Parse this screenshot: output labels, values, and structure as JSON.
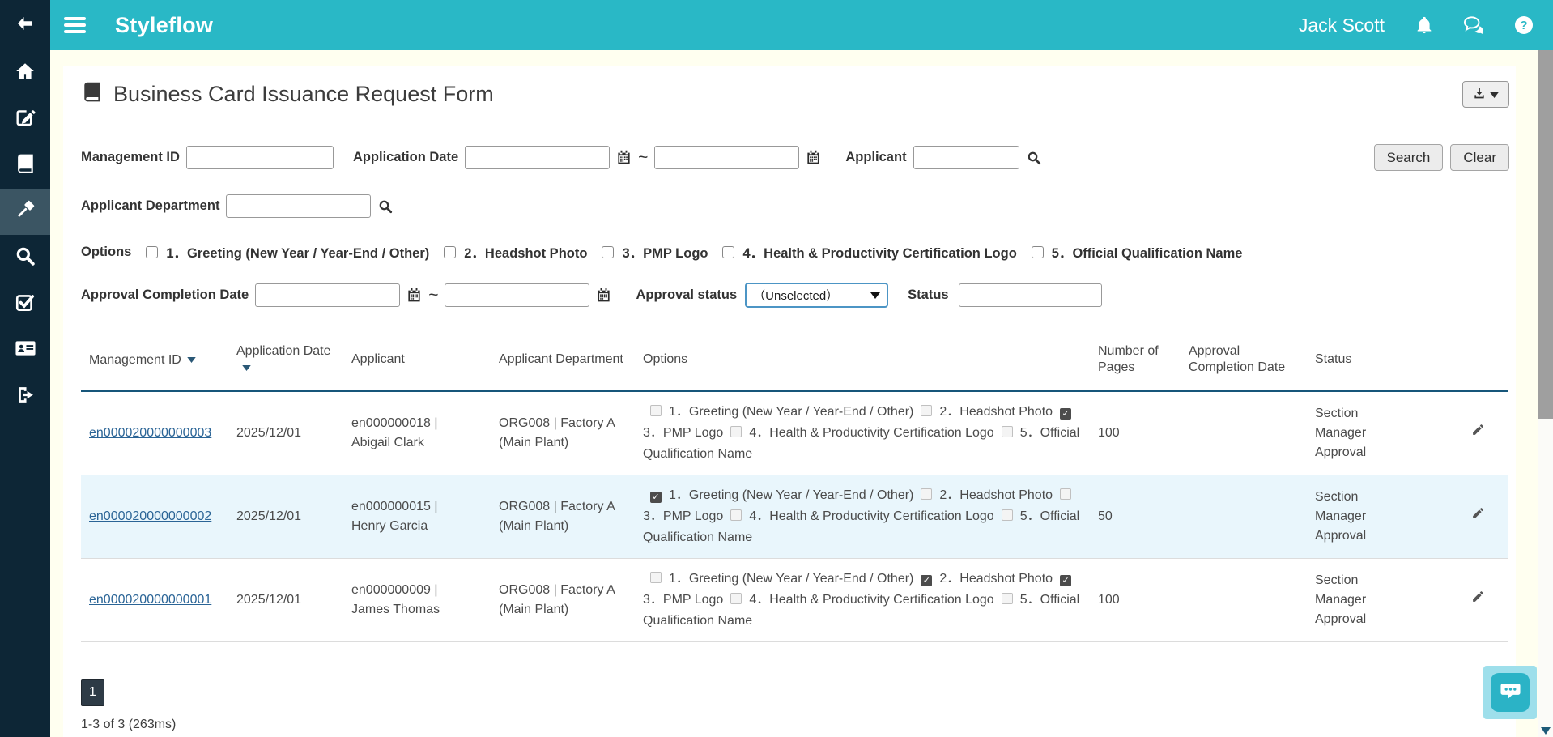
{
  "brand": {
    "name": "Styleflow"
  },
  "topbar": {
    "user_name": "Jack Scott",
    "icons": [
      "hamburger-icon",
      "bell-icon",
      "chat-bubbles-icon",
      "help-circle-icon"
    ]
  },
  "sidebar": {
    "icons": [
      "back-arrow-icon",
      "home-icon",
      "edit-icon",
      "book-icon",
      "gavel-icon",
      "search-icon",
      "check-square-icon",
      "id-card-icon",
      "logout-icon"
    ],
    "active_icon": "gavel-icon"
  },
  "page": {
    "title": "Business Card Issuance Request Form",
    "title_icon": "book-icon"
  },
  "export_menu": {
    "icons": [
      "download-icon",
      "caret-down-icon"
    ]
  },
  "filters": {
    "management_id": {
      "label": "Management ID",
      "value": ""
    },
    "application_date": {
      "label": "Application Date",
      "from": "",
      "to": "",
      "separator": "~"
    },
    "applicant": {
      "label": "Applicant",
      "value": ""
    },
    "applicant_department": {
      "label": "Applicant Department",
      "value": ""
    },
    "options": {
      "label": "Options",
      "items": [
        "1．Greeting (New Year / Year-End / Other)",
        "2．Headshot Photo",
        "3．PMP Logo",
        "4．Health & Productivity Certification Logo",
        "5．Official Qualification Name"
      ]
    },
    "approval_completion_date": {
      "label": "Approval Completion Date",
      "from": "",
      "to": "",
      "separator": "~"
    },
    "approval_status": {
      "label": "Approval status",
      "value": "（Unselected）"
    },
    "status": {
      "label": "Status",
      "value": ""
    },
    "search_button": "Search",
    "clear_button": "Clear"
  },
  "table": {
    "headers": [
      {
        "label": "Management ID",
        "sortable": true
      },
      {
        "label": "Application Date",
        "sortable": true
      },
      {
        "label": "Applicant",
        "sortable": false
      },
      {
        "label": "Applicant Department",
        "sortable": false
      },
      {
        "label": "Options",
        "sortable": false
      },
      {
        "label": "Number of Pages",
        "sortable": false
      },
      {
        "label": "Approval Completion Date",
        "sortable": false
      },
      {
        "label": "Status",
        "sortable": false
      },
      {
        "label": "",
        "sortable": false
      }
    ],
    "rows": [
      {
        "management_id": "en000020000000003",
        "application_date": "2025/12/01",
        "applicant": "en000000018 | Abigail Clark",
        "department": "ORG008 | Factory A (Main Plant)",
        "checked_options": [
          3
        ],
        "pages": "100",
        "approval_completion_date": "",
        "status": "Section Manager Approval",
        "highlighted": false
      },
      {
        "management_id": "en000020000000002",
        "application_date": "2025/12/01",
        "applicant": "en000000015 | Henry Garcia",
        "department": "ORG008 | Factory A (Main Plant)",
        "checked_options": [
          1
        ],
        "pages": "50",
        "approval_completion_date": "",
        "status": "Section Manager Approval",
        "highlighted": true
      },
      {
        "management_id": "en000020000000001",
        "application_date": "2025/12/01",
        "applicant": "en000000009 | James Thomas",
        "department": "ORG008 | Factory A (Main Plant)",
        "checked_options": [
          2,
          3
        ],
        "pages": "100",
        "approval_completion_date": "",
        "status": "Section Manager Approval",
        "highlighted": false
      }
    ]
  },
  "pagination": {
    "page": "1",
    "summary": "1-3 of 3 (263ms)"
  },
  "colors": {
    "header_teal": "#29b8c6",
    "sidebar_navy": "#0d2636",
    "sidebar_active": "#3b5563",
    "body_cream": "#fffff0",
    "table_header_border": "#17567a",
    "row_highlight": "#e9f6fc",
    "link": "#2a6496",
    "select_focus_border": "#4c95c5",
    "pagination_dark": "#2e3b46"
  }
}
